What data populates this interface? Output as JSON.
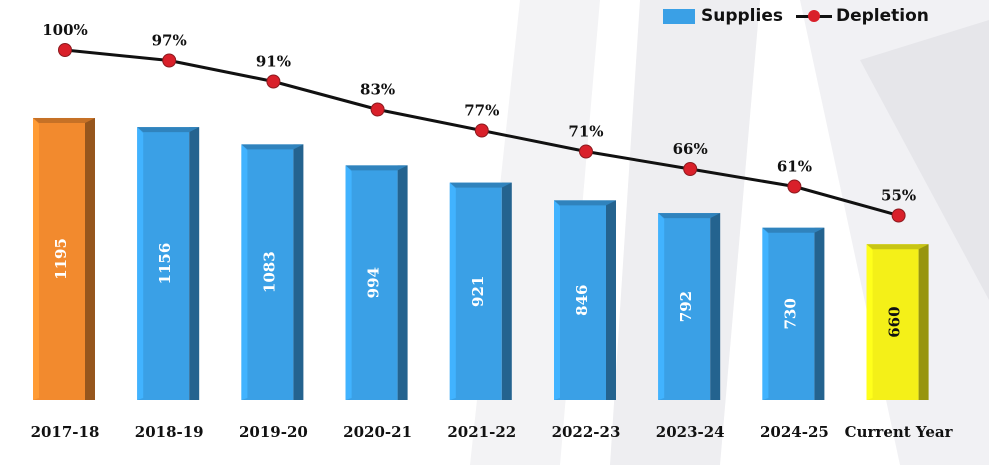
{
  "chart_data": {
    "type": "bar",
    "categories": [
      "2017-18",
      "2018-19",
      "2019-20",
      "2020-21",
      "2021-22",
      "2022-23",
      "2023-24",
      "2024-25",
      "Current Year"
    ],
    "series": [
      {
        "name": "Supplies",
        "type": "bar",
        "values": [
          1195,
          1156,
          1083,
          994,
          921,
          846,
          792,
          730,
          660
        ],
        "value_labels": [
          "1195",
          "1156",
          "1083",
          "994",
          "921",
          "846",
          "792",
          "730",
          "660"
        ],
        "colors": [
          "#f28a2e",
          "#3aa0e6",
          "#3aa0e6",
          "#3aa0e6",
          "#3aa0e6",
          "#3aa0e6",
          "#3aa0e6",
          "#3aa0e6",
          "#f4f018"
        ]
      },
      {
        "name": "Depletion",
        "type": "line",
        "values": [
          100,
          97,
          91,
          83,
          77,
          71,
          66,
          61,
          55
        ],
        "value_labels": [
          "100%",
          "97%",
          "91%",
          "83%",
          "77%",
          "71%",
          "66%",
          "61%",
          "55%"
        ],
        "color": "#d9202a"
      }
    ],
    "legend": {
      "position": "top-right",
      "items": [
        "Supplies",
        "Depletion"
      ]
    },
    "title": "",
    "xlabel": "",
    "ylabel": "",
    "grid": false
  }
}
